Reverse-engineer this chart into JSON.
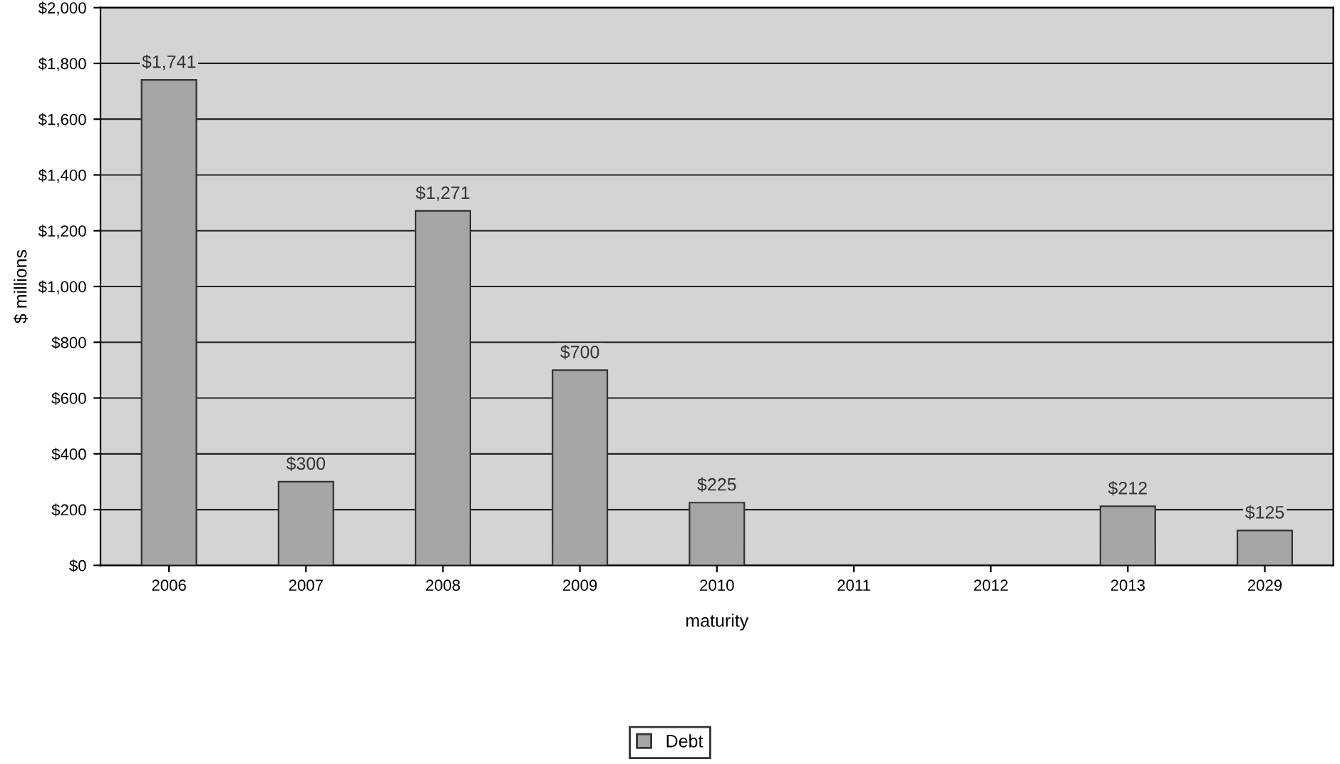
{
  "chart_data": {
    "type": "bar",
    "xlabel": "maturity",
    "ylabel": "$ millions",
    "categories": [
      "2006",
      "2007",
      "2008",
      "2009",
      "2010",
      "2011",
      "2012",
      "2013",
      "2029"
    ],
    "series": [
      {
        "name": "Debt",
        "color": "#a6a6a6",
        "values": [
          1741,
          300,
          1271,
          700,
          225,
          null,
          null,
          212,
          125
        ],
        "value_labels": [
          "$1,741",
          "$300",
          "$1,271",
          "$700",
          "$225",
          null,
          null,
          "$212",
          "$125"
        ]
      }
    ],
    "ylim": [
      0,
      2000
    ],
    "yticks": [
      {
        "value": 0,
        "label": "$0"
      },
      {
        "value": 200,
        "label": "$200"
      },
      {
        "value": 400,
        "label": "$400"
      },
      {
        "value": 600,
        "label": "$600"
      },
      {
        "value": 800,
        "label": "$800"
      },
      {
        "value": 1000,
        "label": "$1,000"
      },
      {
        "value": 1200,
        "label": "$1,200"
      },
      {
        "value": 1400,
        "label": "$1,400"
      },
      {
        "value": 1600,
        "label": "$1,600"
      },
      {
        "value": 1800,
        "label": "$1,800"
      },
      {
        "value": 2000,
        "label": "$2,000"
      }
    ],
    "grid": "y",
    "legend": "bottom"
  }
}
